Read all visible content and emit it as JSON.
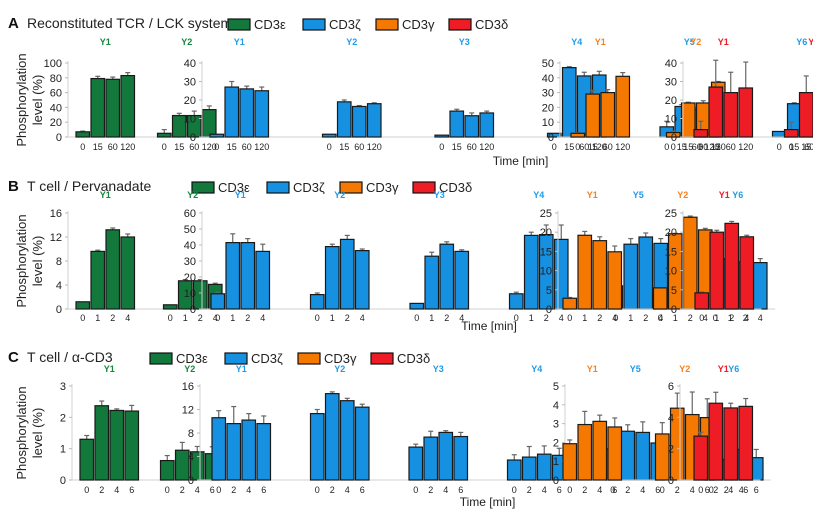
{
  "chart_data": {
    "type": "bar",
    "colors": {
      "CD3e": "#12783c",
      "CD3z": "#1690e0",
      "CD3g": "#f57800",
      "CD3d": "#ee1c24"
    },
    "legend": [
      {
        "key": "CD3e",
        "label": "CD3ε"
      },
      {
        "key": "CD3z",
        "label": "CD3ζ"
      },
      {
        "key": "CD3g",
        "label": "CD3γ"
      },
      {
        "key": "CD3d",
        "label": "CD3δ"
      }
    ],
    "ylabel_line1": "Phosphorylation",
    "ylabel_line2": "level (%)",
    "xlabel": "Time [min]",
    "panels": [
      {
        "letter": "A",
        "title": "Reconstituted TCR / LCK system",
        "timepoints": [
          "0",
          "15",
          "60",
          "120"
        ],
        "subplots": [
          {
            "subunit": "CD3e",
            "ylim": [
              0,
              100
            ],
            "yticks": [
              0,
              20,
              40,
              60,
              80,
              100
            ],
            "groups": [
              {
                "site": "Y1",
                "values": [
                  7,
                  79,
                  78,
                  83
                ],
                "errors": [
                  1,
                  3,
                  3,
                  4
                ]
              },
              {
                "site": "Y2",
                "values": [
                  5,
                  29,
                  29,
                  37
                ],
                "errors": [
                  5,
                  3,
                  6,
                  5
                ]
              }
            ]
          },
          {
            "subunit": "CD3z",
            "ylim": [
              0,
              40
            ],
            "yticks": [
              0,
              10,
              20,
              30,
              40
            ],
            "groups": [
              {
                "site": "Y1",
                "values": [
                  1.5,
                  27,
                  26,
                  25
                ],
                "errors": [
                  0,
                  3,
                  1.5,
                  2
                ]
              },
              {
                "site": "Y2",
                "values": [
                  1.5,
                  19,
                  16.5,
                  18
                ],
                "errors": [
                  0,
                  1,
                  0.5,
                  0.5
                ]
              },
              {
                "site": "Y3",
                "values": [
                  1,
                  14,
                  11.5,
                  13
                ],
                "errors": [
                  0,
                  1,
                  1.5,
                  1
                ]
              },
              {
                "site": "Y4",
                "values": [
                  2,
                  37.5,
                  33,
                  33.5
                ],
                "errors": [
                  0,
                  0.5,
                  2,
                  2
                ]
              },
              {
                "site": "Y5",
                "values": [
                  5.5,
                  16.5,
                  15,
                  16.5
                ],
                "errors": [
                  3,
                  1,
                  1,
                  1
                ]
              },
              {
                "site": "Y6",
                "values": [
                  3,
                  18,
                  16,
                  16.5
                ],
                "errors": [
                  0,
                  0.5,
                  0.5,
                  0.5
                ]
              }
            ]
          },
          {
            "subunit": "CD3g",
            "ylim": [
              0,
              50
            ],
            "yticks": [
              0,
              10,
              20,
              30,
              40,
              50
            ],
            "groups": [
              {
                "site": "Y1",
                "values": [
                  2.5,
                  29,
                  30,
                  41
                ],
                "errors": [
                  0.5,
                  2.5,
                  2,
                  2.5
                ]
              },
              {
                "site": "Y2",
                "values": [
                  3,
                  23,
                  23,
                  37
                ],
                "errors": [
                  1,
                  0.5,
                  1.5,
                  0.5
                ]
              }
            ]
          },
          {
            "subunit": "CD3d",
            "ylim": [
              0,
              40
            ],
            "yticks": [
              0,
              10,
              20,
              30,
              40
            ],
            "groups": [
              {
                "site": "Y1",
                "values": [
                  4,
                  27,
                  24,
                  26.5
                ],
                "errors": [
                  4.5,
                  14.5,
                  11,
                  14
                ]
              },
              {
                "site": "Y2",
                "values": [
                  4,
                  24,
                  20,
                  22
                ],
                "errors": [
                  4,
                  9,
                  8,
                  8
                ]
              }
            ]
          }
        ]
      },
      {
        "letter": "B",
        "title": "T cell / Pervanadate",
        "timepoints": [
          "0",
          "1",
          "2",
          "4"
        ],
        "subplots": [
          {
            "subunit": "CD3e",
            "ylim": [
              0,
              16
            ],
            "yticks": [
              0,
              4,
              8,
              12,
              16
            ],
            "groups": [
              {
                "site": "Y1",
                "values": [
                  1.2,
                  9.6,
                  13.2,
                  12
                ],
                "errors": [
                  0,
                  0.2,
                  0.3,
                  0.5
                ]
              },
              {
                "site": "Y2",
                "values": [
                  0.7,
                  4.7,
                  4.7,
                  4.1
                ],
                "errors": [
                  0,
                  0.2,
                  0.2,
                  0.2
                ]
              }
            ]
          },
          {
            "subunit": "CD3z",
            "ylim": [
              0,
              60
            ],
            "yticks": [
              0,
              10,
              20,
              30,
              40,
              50,
              60
            ],
            "groups": [
              {
                "site": "Y1",
                "values": [
                  9.5,
                  41.5,
                  41.5,
                  36
                ],
                "errors": [
                  1,
                  5.5,
                  2.5,
                  4.5
                ]
              },
              {
                "site": "Y2",
                "values": [
                  9,
                  39,
                  43.5,
                  36.5
                ],
                "errors": [
                  1,
                  1.5,
                  2.5,
                  1
                ]
              },
              {
                "site": "Y3",
                "values": [
                  3.5,
                  33,
                  40.5,
                  36
                ],
                "errors": [
                  0,
                  2.5,
                  1.5,
                  1
                ]
              },
              {
                "site": "Y4",
                "values": [
                  9.5,
                  46,
                  46.5,
                  43.5
                ],
                "errors": [
                  1,
                  2,
                  6,
                  9
                ]
              },
              {
                "site": "Y5",
                "values": [
                  14.5,
                  40.5,
                  45,
                  41
                ],
                "errors": [
                  3.5,
                  3.5,
                  2.5,
                  3
                ]
              },
              {
                "site": "Y6",
                "values": [
                  10,
                  31.5,
                  29.5,
                  29
                ],
                "errors": [
                  7.5,
                  2.5,
                  1.5,
                  2.5
                ]
              }
            ]
          },
          {
            "subunit": "CD3g",
            "ylim": [
              0,
              25
            ],
            "yticks": [
              0,
              5,
              10,
              15,
              20,
              25
            ],
            "groups": [
              {
                "site": "Y1",
                "values": [
                  2.8,
                  19.2,
                  17.8,
                  14.9
                ],
                "errors": [
                  0.2,
                  1,
                  1,
                  1.5
                ]
              },
              {
                "site": "Y2",
                "values": [
                  5.5,
                  19.6,
                  23.9,
                  20.6
                ],
                "errors": [
                  0,
                  0.1,
                  0.3,
                  0.4
                ]
              }
            ]
          },
          {
            "subunit": "CD3d",
            "ylim": [
              0,
              25
            ],
            "yticks": [
              0,
              5,
              10,
              15,
              20,
              25
            ],
            "groups": [
              {
                "site": "Y1",
                "values": [
                  4.2,
                  20,
                  22.3,
                  18.8
                ],
                "errors": [
                  0.2,
                  0.5,
                  0.5,
                  0.4
                ]
              }
            ]
          }
        ]
      },
      {
        "letter": "C",
        "title": "T cell / α-CD3",
        "timepoints": [
          "0",
          "2",
          "4",
          "6"
        ],
        "subplots": [
          {
            "subunit": "CD3e",
            "ylim": [
              0,
              3
            ],
            "yticks": [
              0,
              1,
              2,
              3
            ],
            "groups": [
              {
                "site": "Y1",
                "values": [
                  1.3,
                  2.37,
                  2.22,
                  2.2
                ],
                "errors": [
                  0.12,
                  0.15,
                  0.05,
                  0.18
                ]
              },
              {
                "site": "Y2",
                "values": [
                  0.62,
                  0.95,
                  0.9,
                  0.84
                ],
                "errors": [
                  0.16,
                  0.25,
                  0.17,
                  0.22
                ]
              }
            ]
          },
          {
            "subunit": "CD3z",
            "ylim": [
              0,
              16
            ],
            "yticks": [
              0,
              4,
              8,
              12,
              16
            ],
            "groups": [
              {
                "site": "Y1",
                "values": [
                  10.6,
                  9.6,
                  10.2,
                  9.6
                ],
                "errors": [
                  1.2,
                  2.9,
                  1.1,
                  1.3
                ]
              },
              {
                "site": "Y2",
                "values": [
                  11.3,
                  14.7,
                  13.5,
                  12.4
                ],
                "errors": [
                  0.7,
                  0.3,
                  0.4,
                  0.5
                ]
              },
              {
                "site": "Y3",
                "values": [
                  5.6,
                  7.3,
                  8.1,
                  7.4
                ],
                "errors": [
                  0.5,
                  1,
                  0.3,
                  0.7
                ]
              },
              {
                "site": "Y4",
                "values": [
                  3.4,
                  3.9,
                  4.4,
                  4.2
                ],
                "errors": [
                  0.9,
                  1.8,
                  1.4,
                  1.2
                ]
              },
              {
                "site": "Y5",
                "values": [
                  5.3,
                  8.3,
                  8.1,
                  6.3
                ],
                "errors": [
                  1.7,
                  1.1,
                  1.8,
                  0.6
                ]
              },
              {
                "site": "Y6",
                "values": [
                  3.8,
                  3.5,
                  5.2,
                  3.8
                ],
                "errors": [
                  0.9,
                  2.6,
                  1.7,
                  1.4
                ]
              }
            ]
          },
          {
            "subunit": "CD3g",
            "ylim": [
              0,
              5
            ],
            "yticks": [
              0,
              1,
              2,
              3,
              4,
              5
            ],
            "groups": [
              {
                "site": "Y1",
                "values": [
                  1.93,
                  2.95,
                  3.12,
                  2.82
                ],
                "errors": [
                  0.2,
                  0.7,
                  0.33,
                  0.48
                ]
              },
              {
                "site": "Y2",
                "values": [
                  2.45,
                  3.82,
                  3.48,
                  3.32
                ],
                "errors": [
                  0.6,
                  0.8,
                  1.2,
                  1
                ]
              }
            ]
          },
          {
            "subunit": "CD3d",
            "ylim": [
              0,
              6
            ],
            "yticks": [
              0,
              2,
              4,
              6
            ],
            "groups": [
              {
                "site": "Y1",
                "values": [
                  2.8,
                  4.9,
                  4.6,
                  4.7
                ],
                "errors": [
                  0.25,
                  0.7,
                  0.3,
                  0.5
                ]
              }
            ]
          }
        ]
      }
    ]
  }
}
